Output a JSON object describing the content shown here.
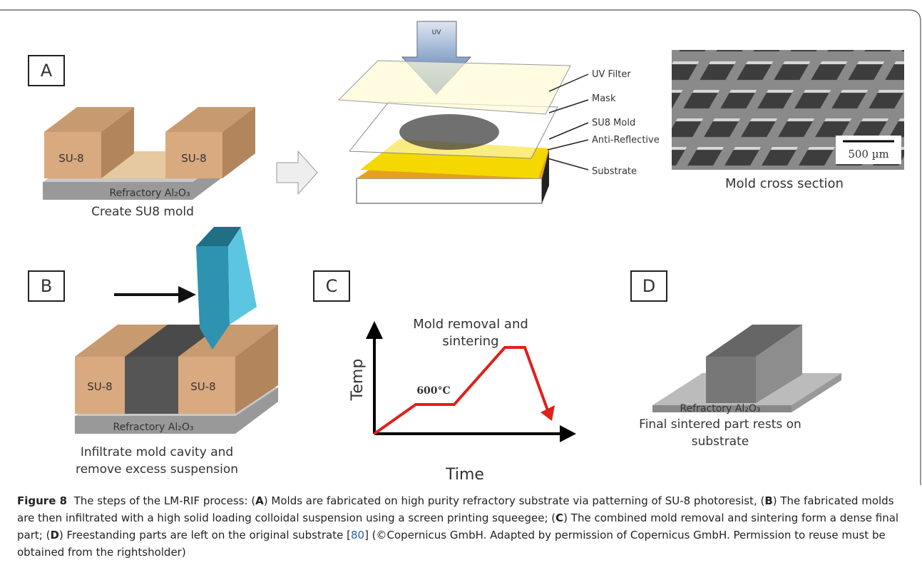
{
  "panels": {
    "a": {
      "label": "A",
      "left_block": "SU-8",
      "right_block": "SU-8",
      "substrate": "Refractory Al₂O₃",
      "caption": "Create SU8 mold",
      "uv_arrow": "UV",
      "layers": [
        "UV Filter",
        "Mask",
        "SU8 Mold",
        "Anti-Reflective",
        "Substrate"
      ],
      "scale_bar": "500 µm",
      "image_caption": "Mold cross section"
    },
    "b": {
      "label": "B",
      "left_block": "SU-8",
      "right_block": "SU-8",
      "substrate": "Refractory Al₂O₃",
      "caption": [
        "Infiltrate mold cavity and",
        "remove excess suspension"
      ]
    },
    "c": {
      "label": "C",
      "title": [
        "Mold removal and",
        "sintering"
      ],
      "y_axis": "Temp",
      "x_axis": "Time",
      "annotation": "600°C"
    },
    "d": {
      "label": "D",
      "substrate": "Refractory Al₂O₃",
      "caption": [
        "Final sintered part rests on",
        "substrate"
      ]
    }
  },
  "figure_caption": {
    "label": "Figure 8",
    "parts": [
      "The steps of the LM-RIF process: (",
      "A",
      ") Molds are fabricated on high purity refractory substrate via patterning of SU-8 photoresist, (",
      "B",
      ") The fabricated molds are then infiltrated with a high solid loading colloidal suspension using a screen printing squeegee; (",
      "C",
      ") The combined mold removal and sintering form a dense final part; (",
      "D",
      ") Freestanding parts are left on the original substrate [",
      "80",
      "] (©Copernicus GmbH. Adapted by permission of Copernicus GmbH. Permission to reuse must be obtained from the rightsholder)"
    ]
  }
}
